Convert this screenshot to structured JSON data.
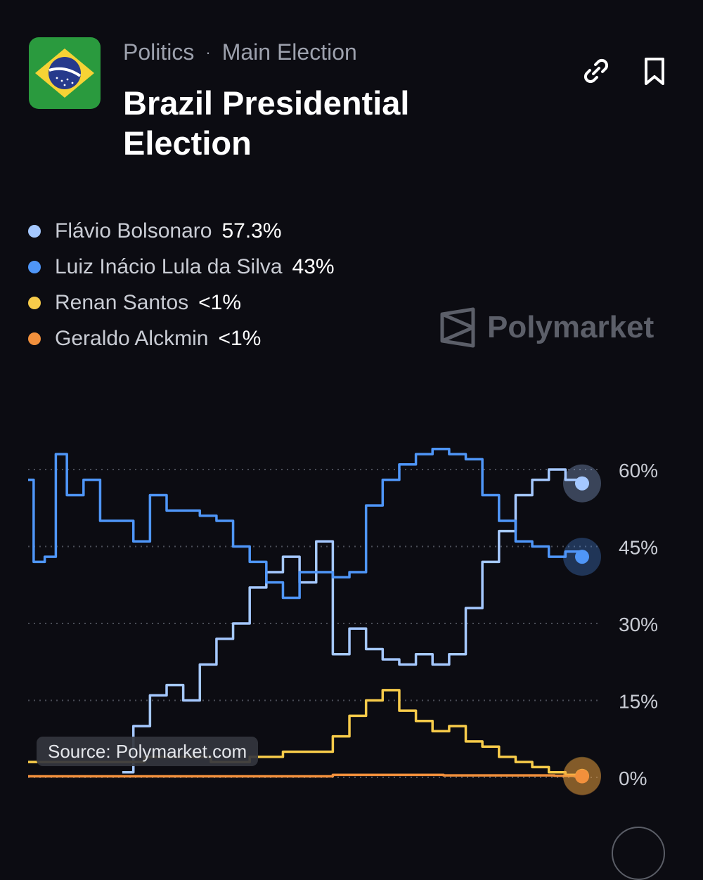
{
  "header": {
    "category": "Politics",
    "separator": "·",
    "subcategory": "Main Election",
    "title": "Brazil Presidential Election",
    "flag_icon": "brazil-flag-icon",
    "actions": [
      {
        "name": "link-icon"
      },
      {
        "name": "bookmark-icon"
      }
    ]
  },
  "legend": [
    {
      "name": "Flávio Bolsonaro",
      "value": "57.3%",
      "color": "#a5c8ff"
    },
    {
      "name": "Luiz Inácio Lula da Silva",
      "value": "43%",
      "color": "#4f96f8"
    },
    {
      "name": "Renan Santos",
      "value": "<1%",
      "color": "#f7cb4a"
    },
    {
      "name": "Geraldo Alckmin",
      "value": "<1%",
      "color": "#f2903c"
    }
  ],
  "watermark": "Polymarket",
  "source": "Source: Polymarket.com",
  "chart_data": {
    "type": "line",
    "y_tick_labels": [
      "60%",
      "45%",
      "30%",
      "15%",
      "0%"
    ],
    "y_ticks": [
      60,
      45,
      30,
      15,
      0
    ],
    "ylim": [
      0,
      65
    ],
    "x_unit": "fraction-of-timeline",
    "grid": true,
    "legend_position": "top-left",
    "series": [
      {
        "name": "Flávio Bolsonaro",
        "color": "#a5c8ff",
        "x": [
          0.17,
          0.19,
          0.22,
          0.25,
          0.28,
          0.31,
          0.34,
          0.37,
          0.4,
          0.43,
          0.46,
          0.49,
          0.52,
          0.55,
          0.58,
          0.61,
          0.64,
          0.67,
          0.7,
          0.73,
          0.76,
          0.79,
          0.82,
          0.85,
          0.88,
          0.91,
          0.94,
          0.97,
          1.0
        ],
        "values": [
          1,
          10,
          16,
          18,
          15,
          22,
          27,
          30,
          37,
          40,
          43,
          38,
          46,
          24,
          29,
          25,
          23,
          22,
          24,
          22,
          24,
          33,
          42,
          48,
          55,
          58,
          60,
          58,
          57.3
        ]
      },
      {
        "name": "Luiz Inácio Lula da Silva",
        "color": "#4f96f8",
        "x": [
          0.0,
          0.01,
          0.03,
          0.05,
          0.07,
          0.1,
          0.13,
          0.16,
          0.19,
          0.22,
          0.25,
          0.28,
          0.31,
          0.34,
          0.37,
          0.4,
          0.43,
          0.46,
          0.49,
          0.52,
          0.55,
          0.58,
          0.61,
          0.64,
          0.67,
          0.7,
          0.73,
          0.76,
          0.79,
          0.82,
          0.85,
          0.88,
          0.91,
          0.94,
          0.97,
          1.0
        ],
        "values": [
          58,
          42,
          43,
          63,
          55,
          58,
          50,
          50,
          46,
          55,
          52,
          52,
          51,
          50,
          45,
          42,
          38,
          35,
          40,
          40,
          39,
          40,
          53,
          58,
          61,
          63,
          64,
          63,
          62,
          55,
          50,
          46,
          45,
          43,
          44,
          43
        ]
      },
      {
        "name": "Renan Santos",
        "color": "#f7cb4a",
        "x": [
          0.0,
          0.13,
          0.16,
          0.21,
          0.26,
          0.33,
          0.4,
          0.46,
          0.52,
          0.55,
          0.58,
          0.61,
          0.64,
          0.67,
          0.7,
          0.73,
          0.76,
          0.79,
          0.82,
          0.85,
          0.88,
          0.91,
          0.94,
          0.97,
          1.0
        ],
        "values": [
          3,
          3,
          3,
          4,
          4,
          3,
          4,
          5,
          5,
          8,
          12,
          15,
          17,
          13,
          11,
          9,
          10,
          7,
          6,
          4,
          3,
          2,
          1,
          0.5,
          0.3
        ]
      },
      {
        "name": "Geraldo Alckmin",
        "color": "#f2903c",
        "x": [
          0.0,
          0.52,
          0.55,
          0.65,
          0.75,
          0.85,
          0.95,
          1.0
        ],
        "values": [
          0.2,
          0.2,
          0.5,
          0.5,
          0.4,
          0.4,
          0.3,
          0.2
        ]
      }
    ]
  }
}
